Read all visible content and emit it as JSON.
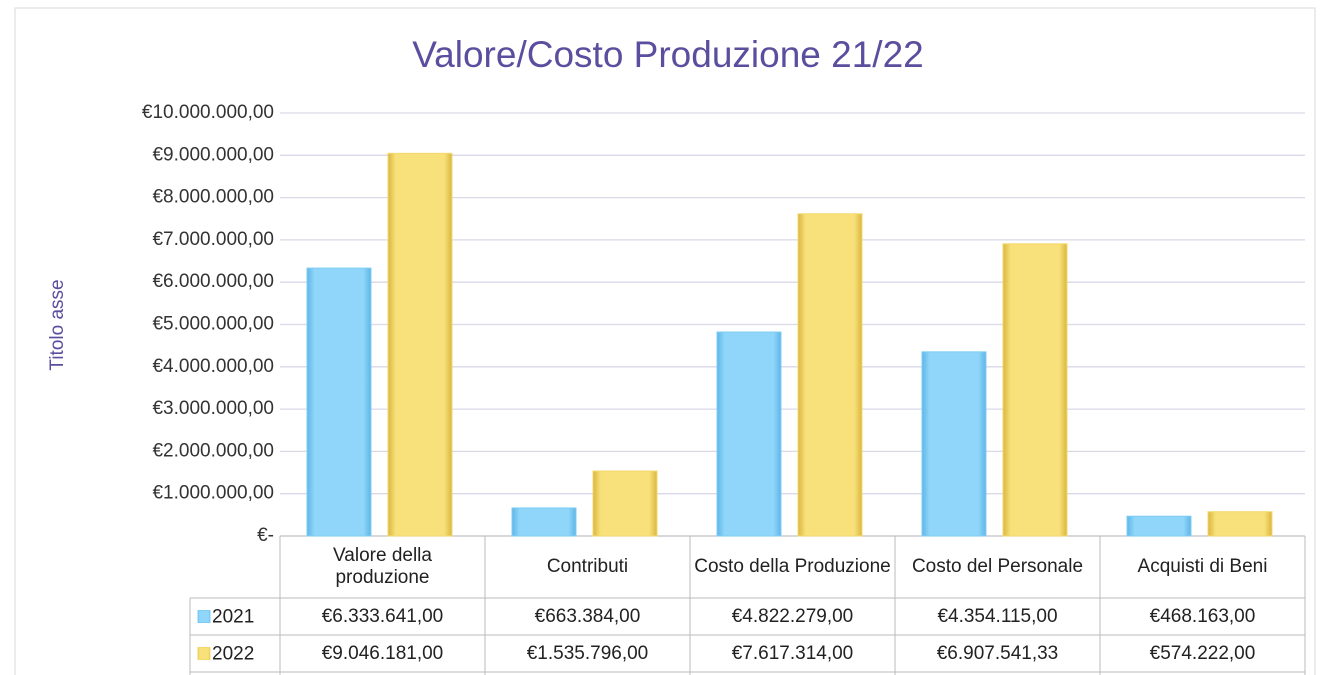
{
  "chart_data": {
    "type": "bar",
    "title": "Valore/Costo Produzione 21/22",
    "y_axis_label": "Titolo asse",
    "categories": [
      "Valore della produzione",
      "Contributi",
      "Costo della Produzione",
      "Costo del Personale",
      "Acquisti di Beni"
    ],
    "series": [
      {
        "name": "2021",
        "color": "#7fcdf4",
        "values": [
          6333641,
          663384,
          4822279,
          4354115,
          468163
        ],
        "value_labels": [
          "€6.333.641,00",
          "€663.384,00",
          "€4.822.279,00",
          "€4.354.115,00",
          "€468.163,00"
        ]
      },
      {
        "name": "2022",
        "color": "#f4d86a",
        "values": [
          9046181,
          1535796,
          7617314,
          6907541.33,
          574222
        ],
        "value_labels": [
          "€9.046.181,00",
          "€1.535.796,00",
          "€7.617.314,00",
          "€6.907.541,33",
          "€574.222,00"
        ]
      }
    ],
    "ylim": [
      0,
      10000000
    ],
    "yticks": [
      {
        "value": 0,
        "label": "€-"
      },
      {
        "value": 1000000,
        "label": "€1.000.000,00"
      },
      {
        "value": 2000000,
        "label": "€2.000.000,00"
      },
      {
        "value": 3000000,
        "label": "€3.000.000,00"
      },
      {
        "value": 4000000,
        "label": "€4.000.000,00"
      },
      {
        "value": 5000000,
        "label": "€5.000.000,00"
      },
      {
        "value": 6000000,
        "label": "€6.000.000,00"
      },
      {
        "value": 7000000,
        "label": "€7.000.000,00"
      },
      {
        "value": 8000000,
        "label": "€8.000.000,00"
      },
      {
        "value": 9000000,
        "label": "€9.000.000,00"
      },
      {
        "value": 10000000,
        "label": "€10.000.000,00"
      }
    ],
    "grid": true
  }
}
